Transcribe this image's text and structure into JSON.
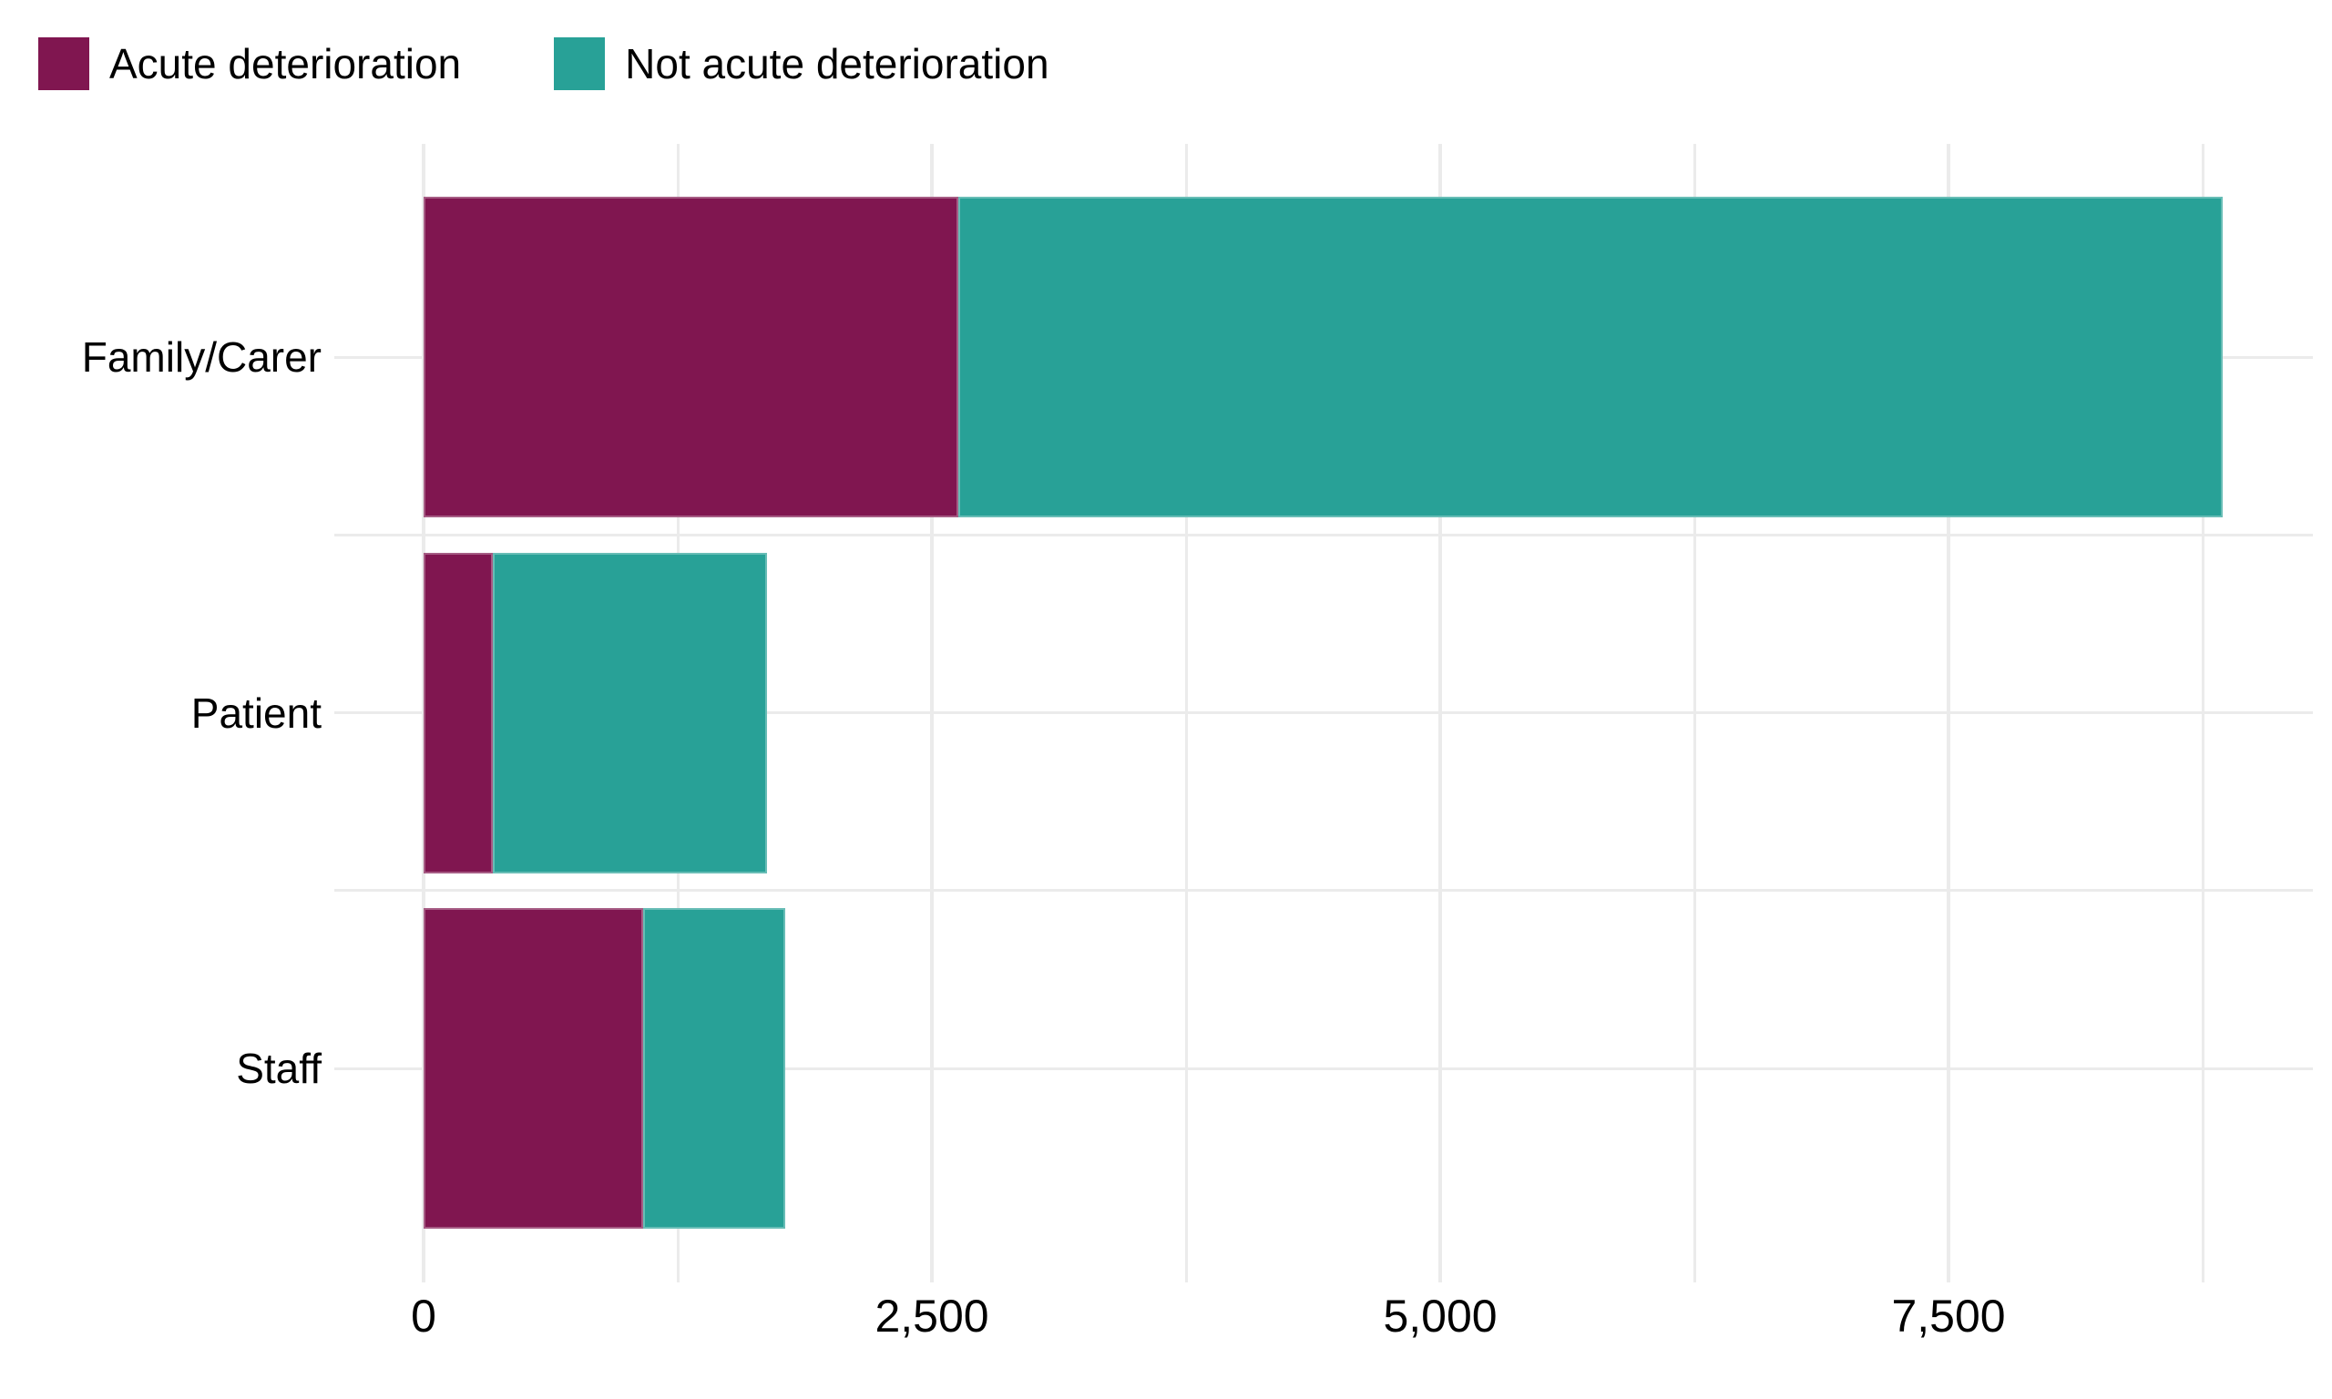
{
  "colors": {
    "acute": "#801650",
    "not_acute": "#28A197",
    "gridline": "#EBEBEB",
    "text": "#000000",
    "background": "#FFFFFF"
  },
  "legend": {
    "items": [
      {
        "label": "Acute deterioration",
        "color": "#801650"
      },
      {
        "label": "Not acute deterioration",
        "color": "#28A197"
      }
    ]
  },
  "chart_data": {
    "type": "bar",
    "orientation": "horizontal",
    "stacked": true,
    "title": "",
    "xlabel": "",
    "ylabel": "",
    "categories": [
      "Family/Carer",
      "Patient",
      "Staff"
    ],
    "series": [
      {
        "name": "Acute deterioration",
        "color": "#801650",
        "values": [
          2630,
          340,
          1080
        ]
      },
      {
        "name": "Not acute deterioration",
        "color": "#28A197",
        "values": [
          6220,
          1350,
          700
        ]
      }
    ],
    "totals": [
      8850,
      1690,
      1780
    ],
    "x_axis": {
      "ticks_major": [
        0,
        2500,
        5000,
        7500
      ],
      "tick_labels": [
        "0",
        "2,500",
        "5,000",
        "7,500"
      ],
      "ticks_minor": [
        1250,
        3750,
        6250,
        8750
      ],
      "range": [
        -440,
        9290
      ]
    },
    "grid": "on",
    "legend_position": "top-left"
  }
}
